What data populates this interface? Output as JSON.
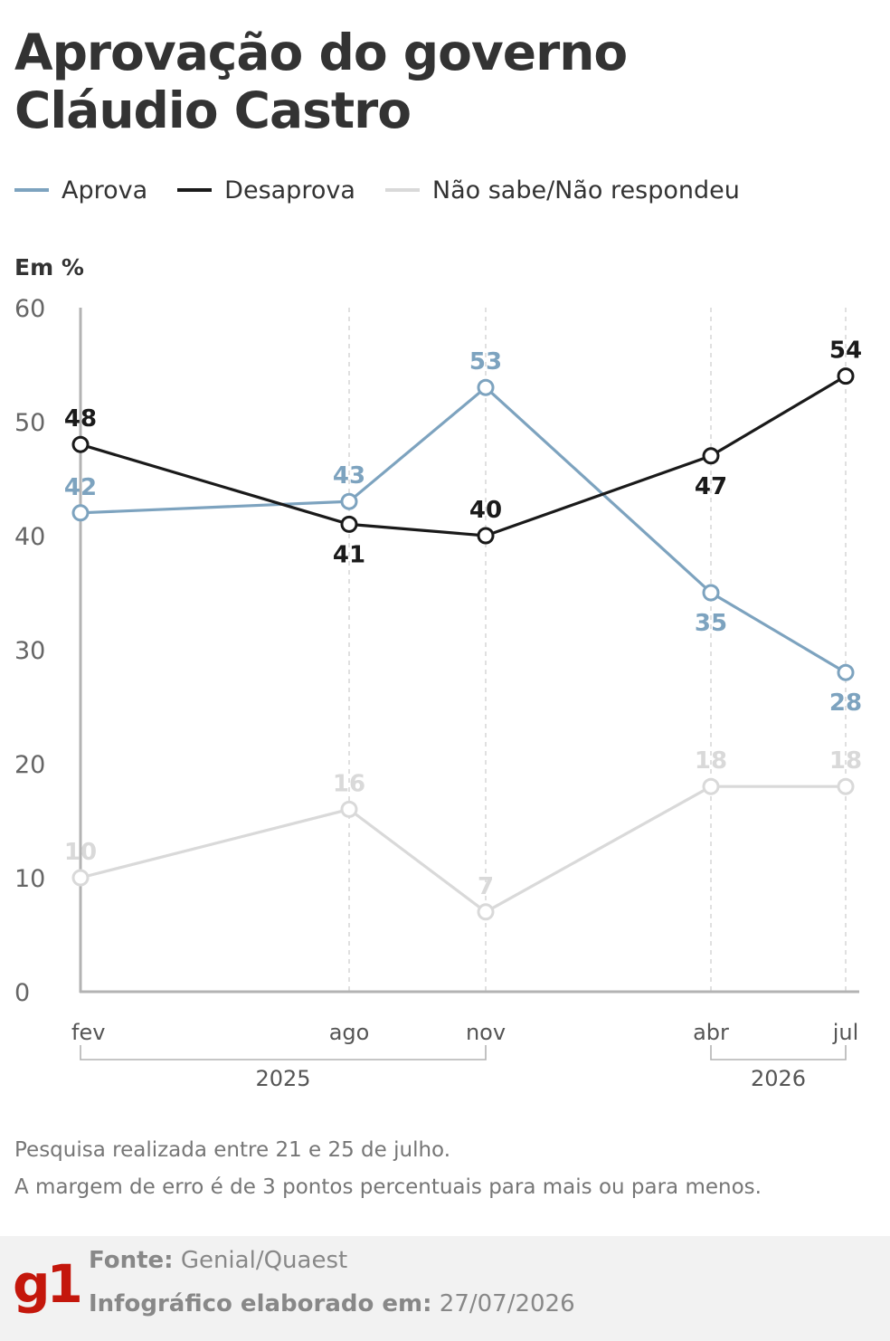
{
  "title": {
    "line1": "Aprovação do governo",
    "line2": "Cláudio Castro"
  },
  "legend": [
    {
      "label": "Aprova",
      "color": "#7da3bf"
    },
    {
      "label": "Desaprova",
      "color": "#1a1a1a"
    },
    {
      "label": "Não sabe/Não respondeu",
      "color": "#d9d9d9"
    }
  ],
  "unit_label": "Em %",
  "chart_data": {
    "type": "line",
    "categories": [
      "fev",
      "ago",
      "nov",
      "abr",
      "jul"
    ],
    "year_groups": [
      {
        "label": "2025",
        "from": 0,
        "to": 2
      },
      {
        "label": "2026",
        "from": 3,
        "to": 4
      }
    ],
    "y_ticks": [
      "0",
      "10",
      "20",
      "30",
      "40",
      "50",
      "60"
    ],
    "ylim": [
      0,
      60
    ],
    "series": [
      {
        "name": "Aprova",
        "color": "#7da3bf",
        "values": [
          42,
          43,
          53,
          35,
          28
        ],
        "label_pos": [
          "above",
          "above",
          "above",
          "below",
          "below"
        ]
      },
      {
        "name": "Desaprova",
        "color": "#1a1a1a",
        "values": [
          48,
          41,
          40,
          47,
          54
        ],
        "label_pos": [
          "above",
          "below",
          "above",
          "below",
          "above"
        ]
      },
      {
        "name": "Não sabe/Não respondeu",
        "color": "#d9d9d9",
        "values": [
          10,
          16,
          7,
          18,
          18
        ],
        "label_pos": [
          "above",
          "above",
          "above",
          "above",
          "above"
        ]
      }
    ]
  },
  "notes": {
    "line1": "Pesquisa realizada entre 21 e 25 de julho.",
    "line2": "A margem de erro é de 3 pontos percentuais para mais ou para menos."
  },
  "footer": {
    "logo": "g1",
    "source_label": "Fonte:",
    "source_value": "Genial/Quaest",
    "made_label": "Infográfico elaborado em:",
    "made_value": "27/07/2026"
  }
}
